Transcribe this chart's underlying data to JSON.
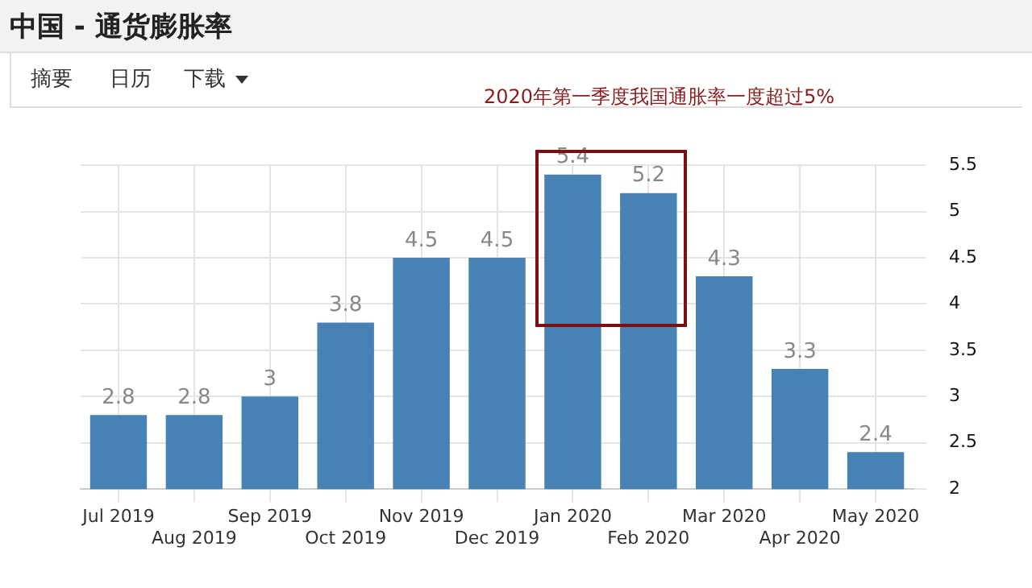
{
  "chart_data": {
    "type": "bar",
    "title": "中国 - 通货膨胀率",
    "annotations": [
      "摘要",
      "日历",
      "下载",
      "2020年第一季度我国通胀率一度超过5%"
    ],
    "categories": [
      "Jul 2019",
      "Aug 2019",
      "Sep 2019",
      "Oct 2019",
      "Nov 2019",
      "Dec 2019",
      "Jan 2020",
      "Feb 2020",
      "Mar 2020",
      "Apr 2020",
      "May 2020"
    ],
    "values": [
      2.8,
      2.8,
      3,
      3.8,
      4.5,
      4.5,
      5.4,
      5.2,
      4.3,
      3.3,
      2.4
    ],
    "color": "#4682b4",
    "ylim": [
      2,
      5.5
    ],
    "yticks": [
      2,
      2.5,
      3,
      3.5,
      4,
      4.5,
      5,
      5.5
    ],
    "grid": true,
    "data_labels": true
  }
}
